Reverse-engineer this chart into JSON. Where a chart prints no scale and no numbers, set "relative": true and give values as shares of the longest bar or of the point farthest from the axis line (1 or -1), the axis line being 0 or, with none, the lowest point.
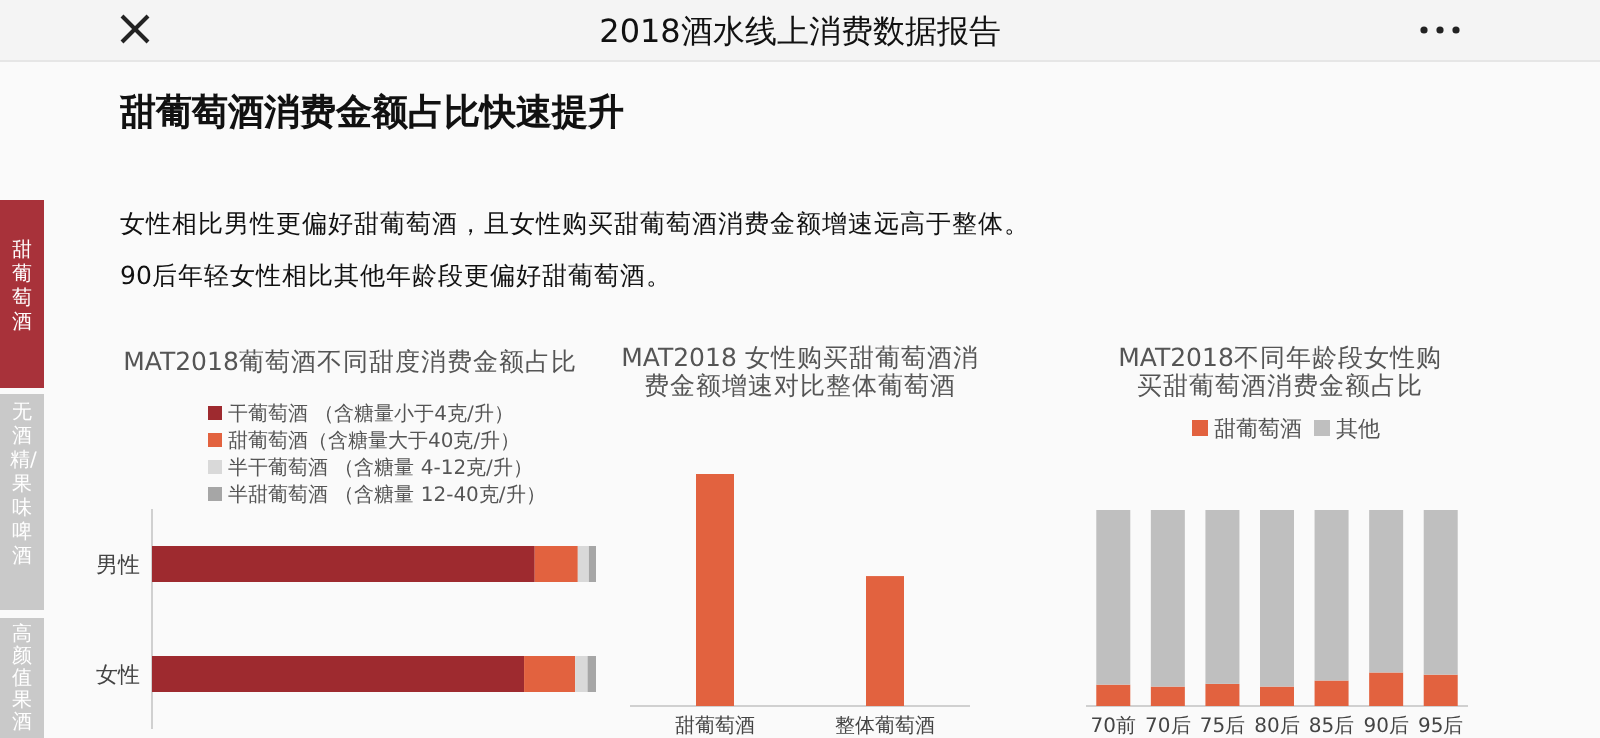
{
  "chart_data": [
    {
      "type": "other",
      "title": "甜葡萄酒消费金额占比快速提升",
      "annotations": [
        "2018酒水线上消费数据报告",
        "女性相比男性更偏好甜葡萄酒，且女性购买甜葡萄酒消费金额增速远高于整体。",
        "90后年轻女性相比其他年龄段更偏好甜葡萄酒。",
        "甜葡萄酒",
        "无酒精/果味啤酒",
        "高颜值果酒"
      ]
    },
    {
      "type": "bar",
      "orientation": "horizontal",
      "stacked": true,
      "relative": true,
      "title": "MAT2018葡萄酒不同甜度消费金额占比",
      "categories": [
        "男性",
        "女性"
      ],
      "legend": "top",
      "series": [
        {
          "name": "干葡萄酒 （含糖量小于4克/升）",
          "color": "#9e2a2f",
          "values": [
            0.862,
            0.838
          ]
        },
        {
          "name": "甜葡萄酒（含糖量大于40克/升）",
          "color": "#e2623f",
          "values": [
            0.097,
            0.115
          ]
        },
        {
          "name": "半干葡萄酒 （含糖量 4-12克/升）",
          "color": "#d9d9d9",
          "values": [
            0.025,
            0.028
          ]
        },
        {
          "name": "半甜葡萄酒 （含糖量 12-40克/升）",
          "color": "#a6a6a6",
          "values": [
            0.016,
            0.019
          ]
        }
      ]
    },
    {
      "type": "bar",
      "relative": true,
      "title": "MAT2018 女性购买甜葡萄酒消费金额增速对比整体葡萄酒",
      "categories": [
        "甜葡萄酒",
        "整体葡萄酒"
      ],
      "color": "#e2623f",
      "values": [
        1,
        0.56
      ]
    },
    {
      "type": "bar",
      "stacked": true,
      "relative": true,
      "title": "MAT2018不同年龄段女性购买甜葡萄酒消费金额占比",
      "categories": [
        "70前",
        "70后",
        "75后",
        "80后",
        "85后",
        "90后",
        "95后"
      ],
      "legend": "top",
      "series": [
        {
          "name": "甜葡萄酒",
          "color": "#e2623f",
          "values": [
            0.109,
            0.099,
            0.113,
            0.099,
            0.13,
            0.171,
            0.16
          ]
        },
        {
          "name": "其他",
          "color": "#bfbfbf",
          "values": [
            0.891,
            0.901,
            0.887,
            0.901,
            0.87,
            0.829,
            0.84
          ]
        }
      ]
    }
  ]
}
